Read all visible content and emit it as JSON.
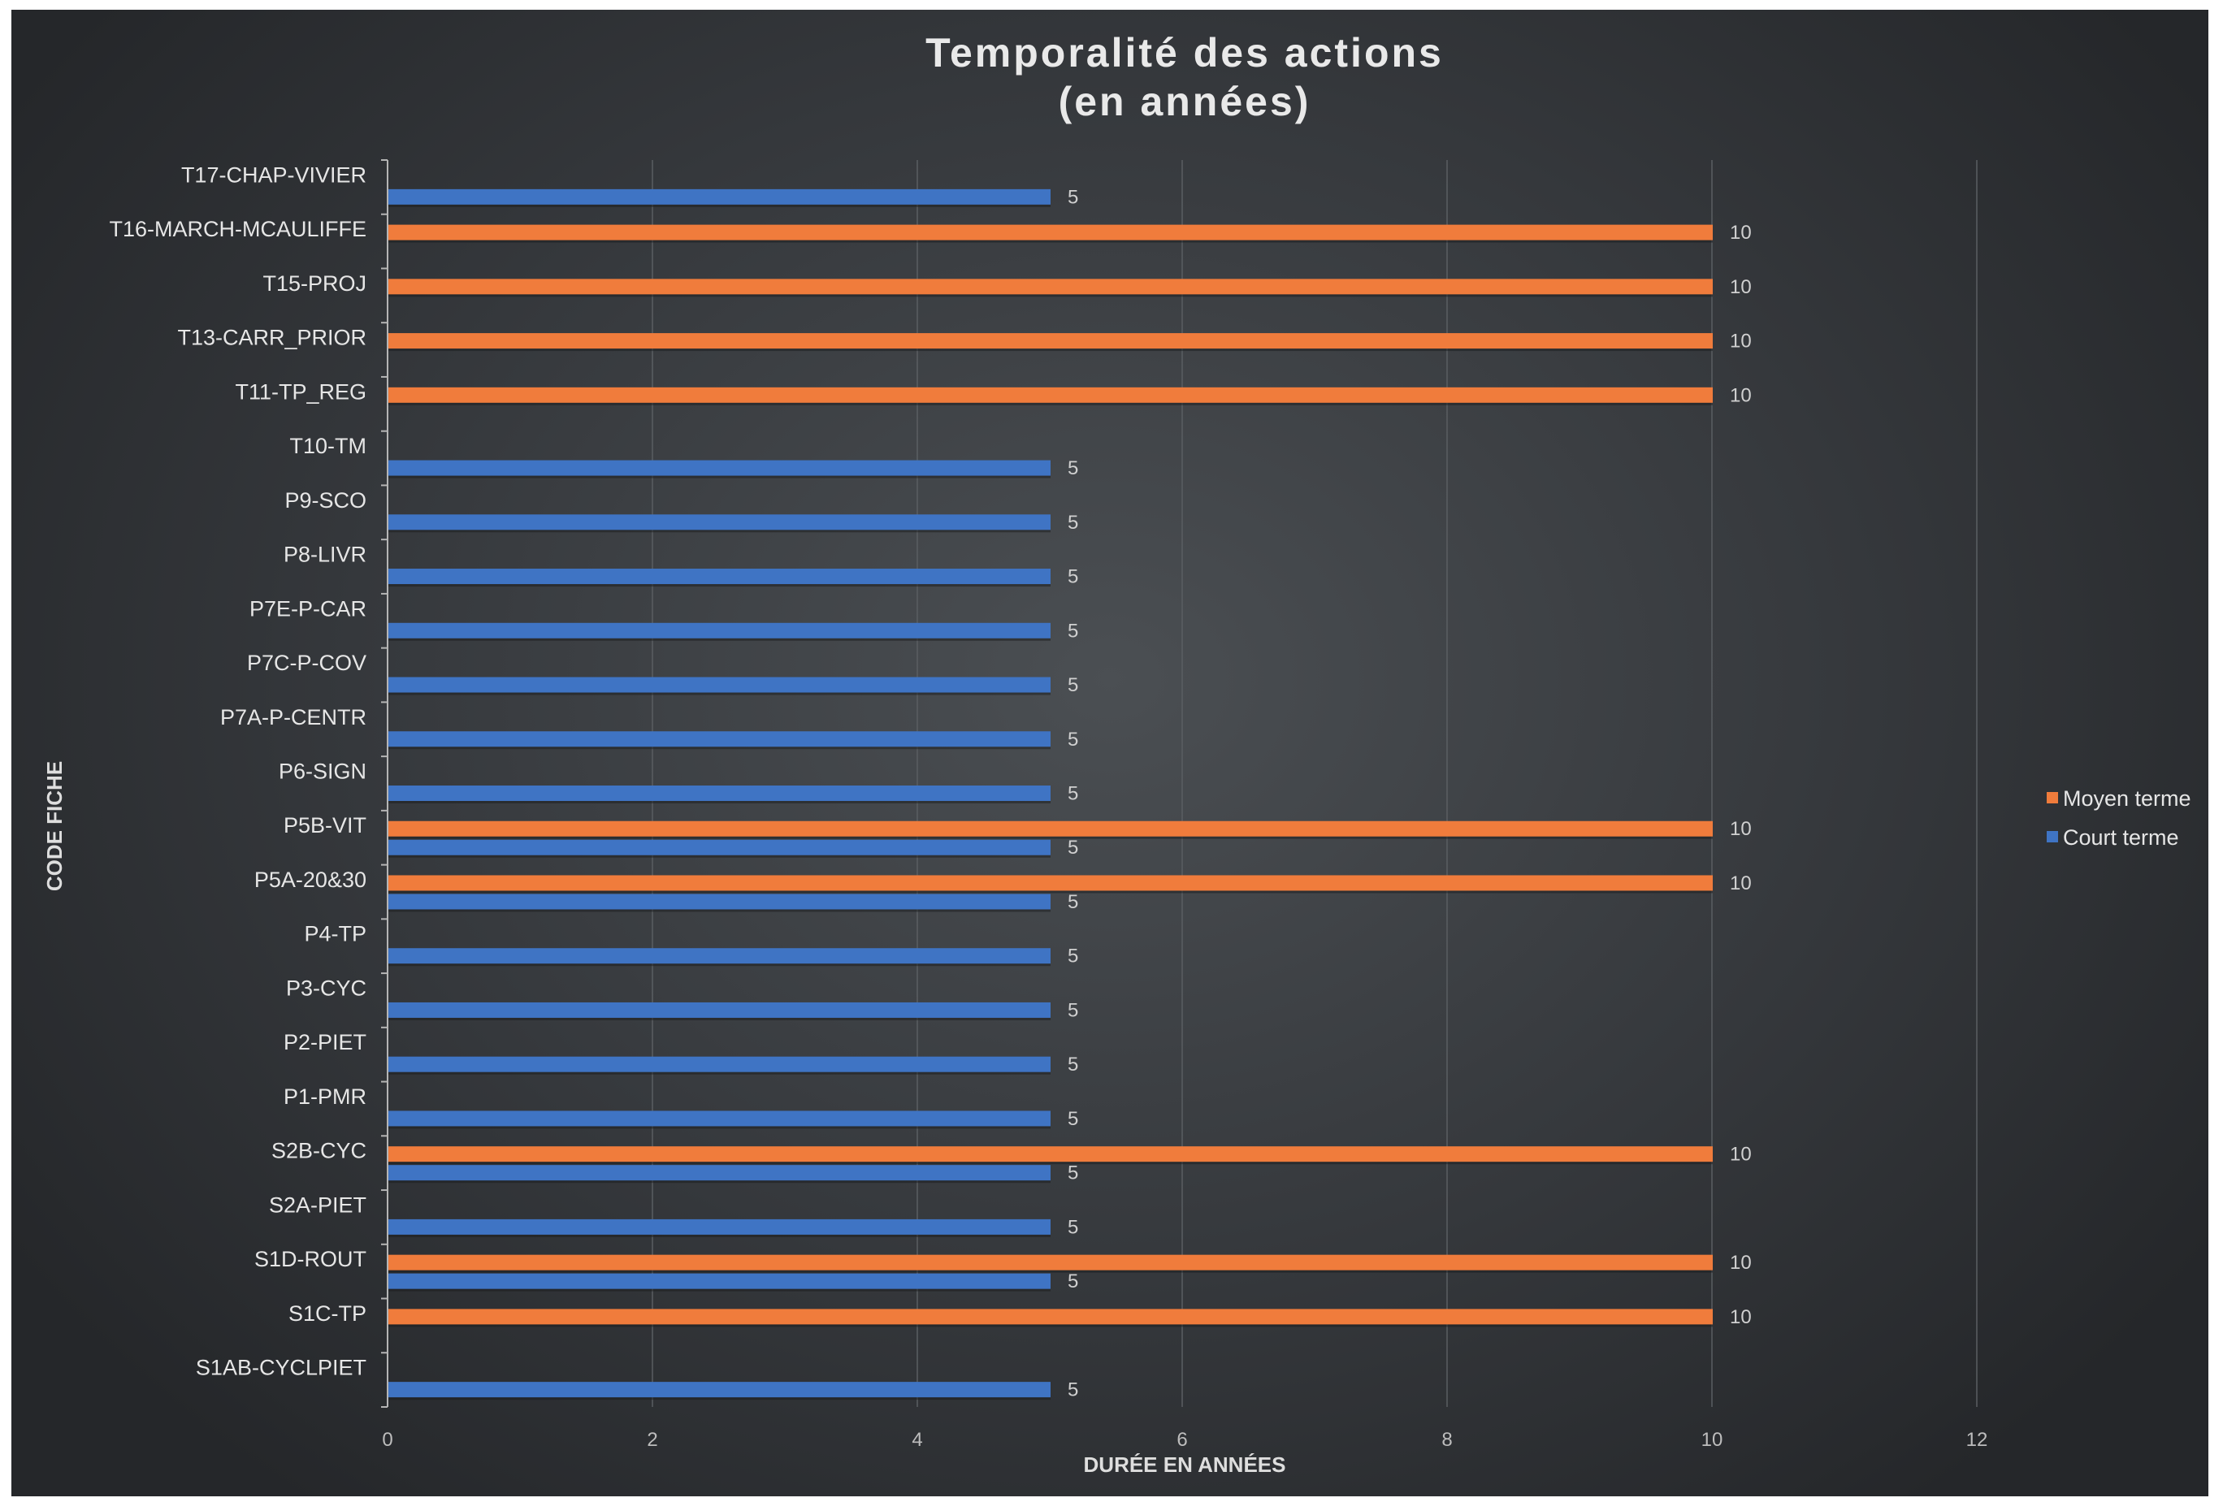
{
  "chart_data": {
    "type": "bar",
    "orientation": "horizontal",
    "title": "Temporalité des actions",
    "subtitle": "(en années)",
    "xlabel": "DURÉE EN ANNÉES",
    "ylabel": "CODE FICHE",
    "xlim": [
      0,
      12
    ],
    "xticks": [
      "0",
      "2",
      "4",
      "6",
      "8",
      "10",
      "12"
    ],
    "grid": "vertical",
    "legend_position": "right",
    "categories": [
      "T17-CHAP-VIVIER",
      "T16-MARCH-MCAULIFFE",
      "T15-PROJ",
      "T13-CARR_PRIOR",
      "T11-TP_REG",
      "T10-TM",
      "P9-SCO",
      "P8-LIVR",
      "P7E-P-CAR",
      "P7C-P-COV",
      "P7A-P-CENTR",
      "P6-SIGN",
      "P5B-VIT",
      "P5A-20&30",
      "P4-TP",
      "P3-CYC",
      "P2-PIET",
      "P1-PMR",
      "S2B-CYC",
      "S2A-PIET",
      "S1D-ROUT",
      "S1C-TP",
      "S1AB-CYCLPIET"
    ],
    "series": [
      {
        "name": "Moyen terme",
        "color": "#f07c3c",
        "values": [
          null,
          10,
          10,
          10,
          10,
          null,
          null,
          null,
          null,
          null,
          null,
          null,
          10,
          10,
          null,
          null,
          null,
          null,
          10,
          null,
          10,
          10,
          null
        ],
        "labels": [
          "",
          "10",
          "10",
          "10",
          "10",
          "",
          "",
          "",
          "",
          "",
          "",
          "",
          "10",
          "10",
          "",
          "",
          "",
          "",
          "10",
          "",
          "10",
          "10",
          ""
        ]
      },
      {
        "name": "Court terme",
        "color": "#3f74c4",
        "values": [
          5,
          null,
          null,
          null,
          null,
          5,
          5,
          5,
          5,
          5,
          5,
          5,
          5,
          5,
          5,
          5,
          5,
          5,
          5,
          5,
          5,
          null,
          5
        ],
        "labels": [
          "5",
          "",
          "",
          "",
          "",
          "5",
          "5",
          "5",
          "5",
          "5",
          "5",
          "5",
          "5",
          "5",
          "5",
          "5",
          "5",
          "5",
          "5",
          "5",
          "5",
          "",
          "5"
        ]
      }
    ],
    "legend": [
      "Moyen terme",
      "Court terme"
    ]
  }
}
